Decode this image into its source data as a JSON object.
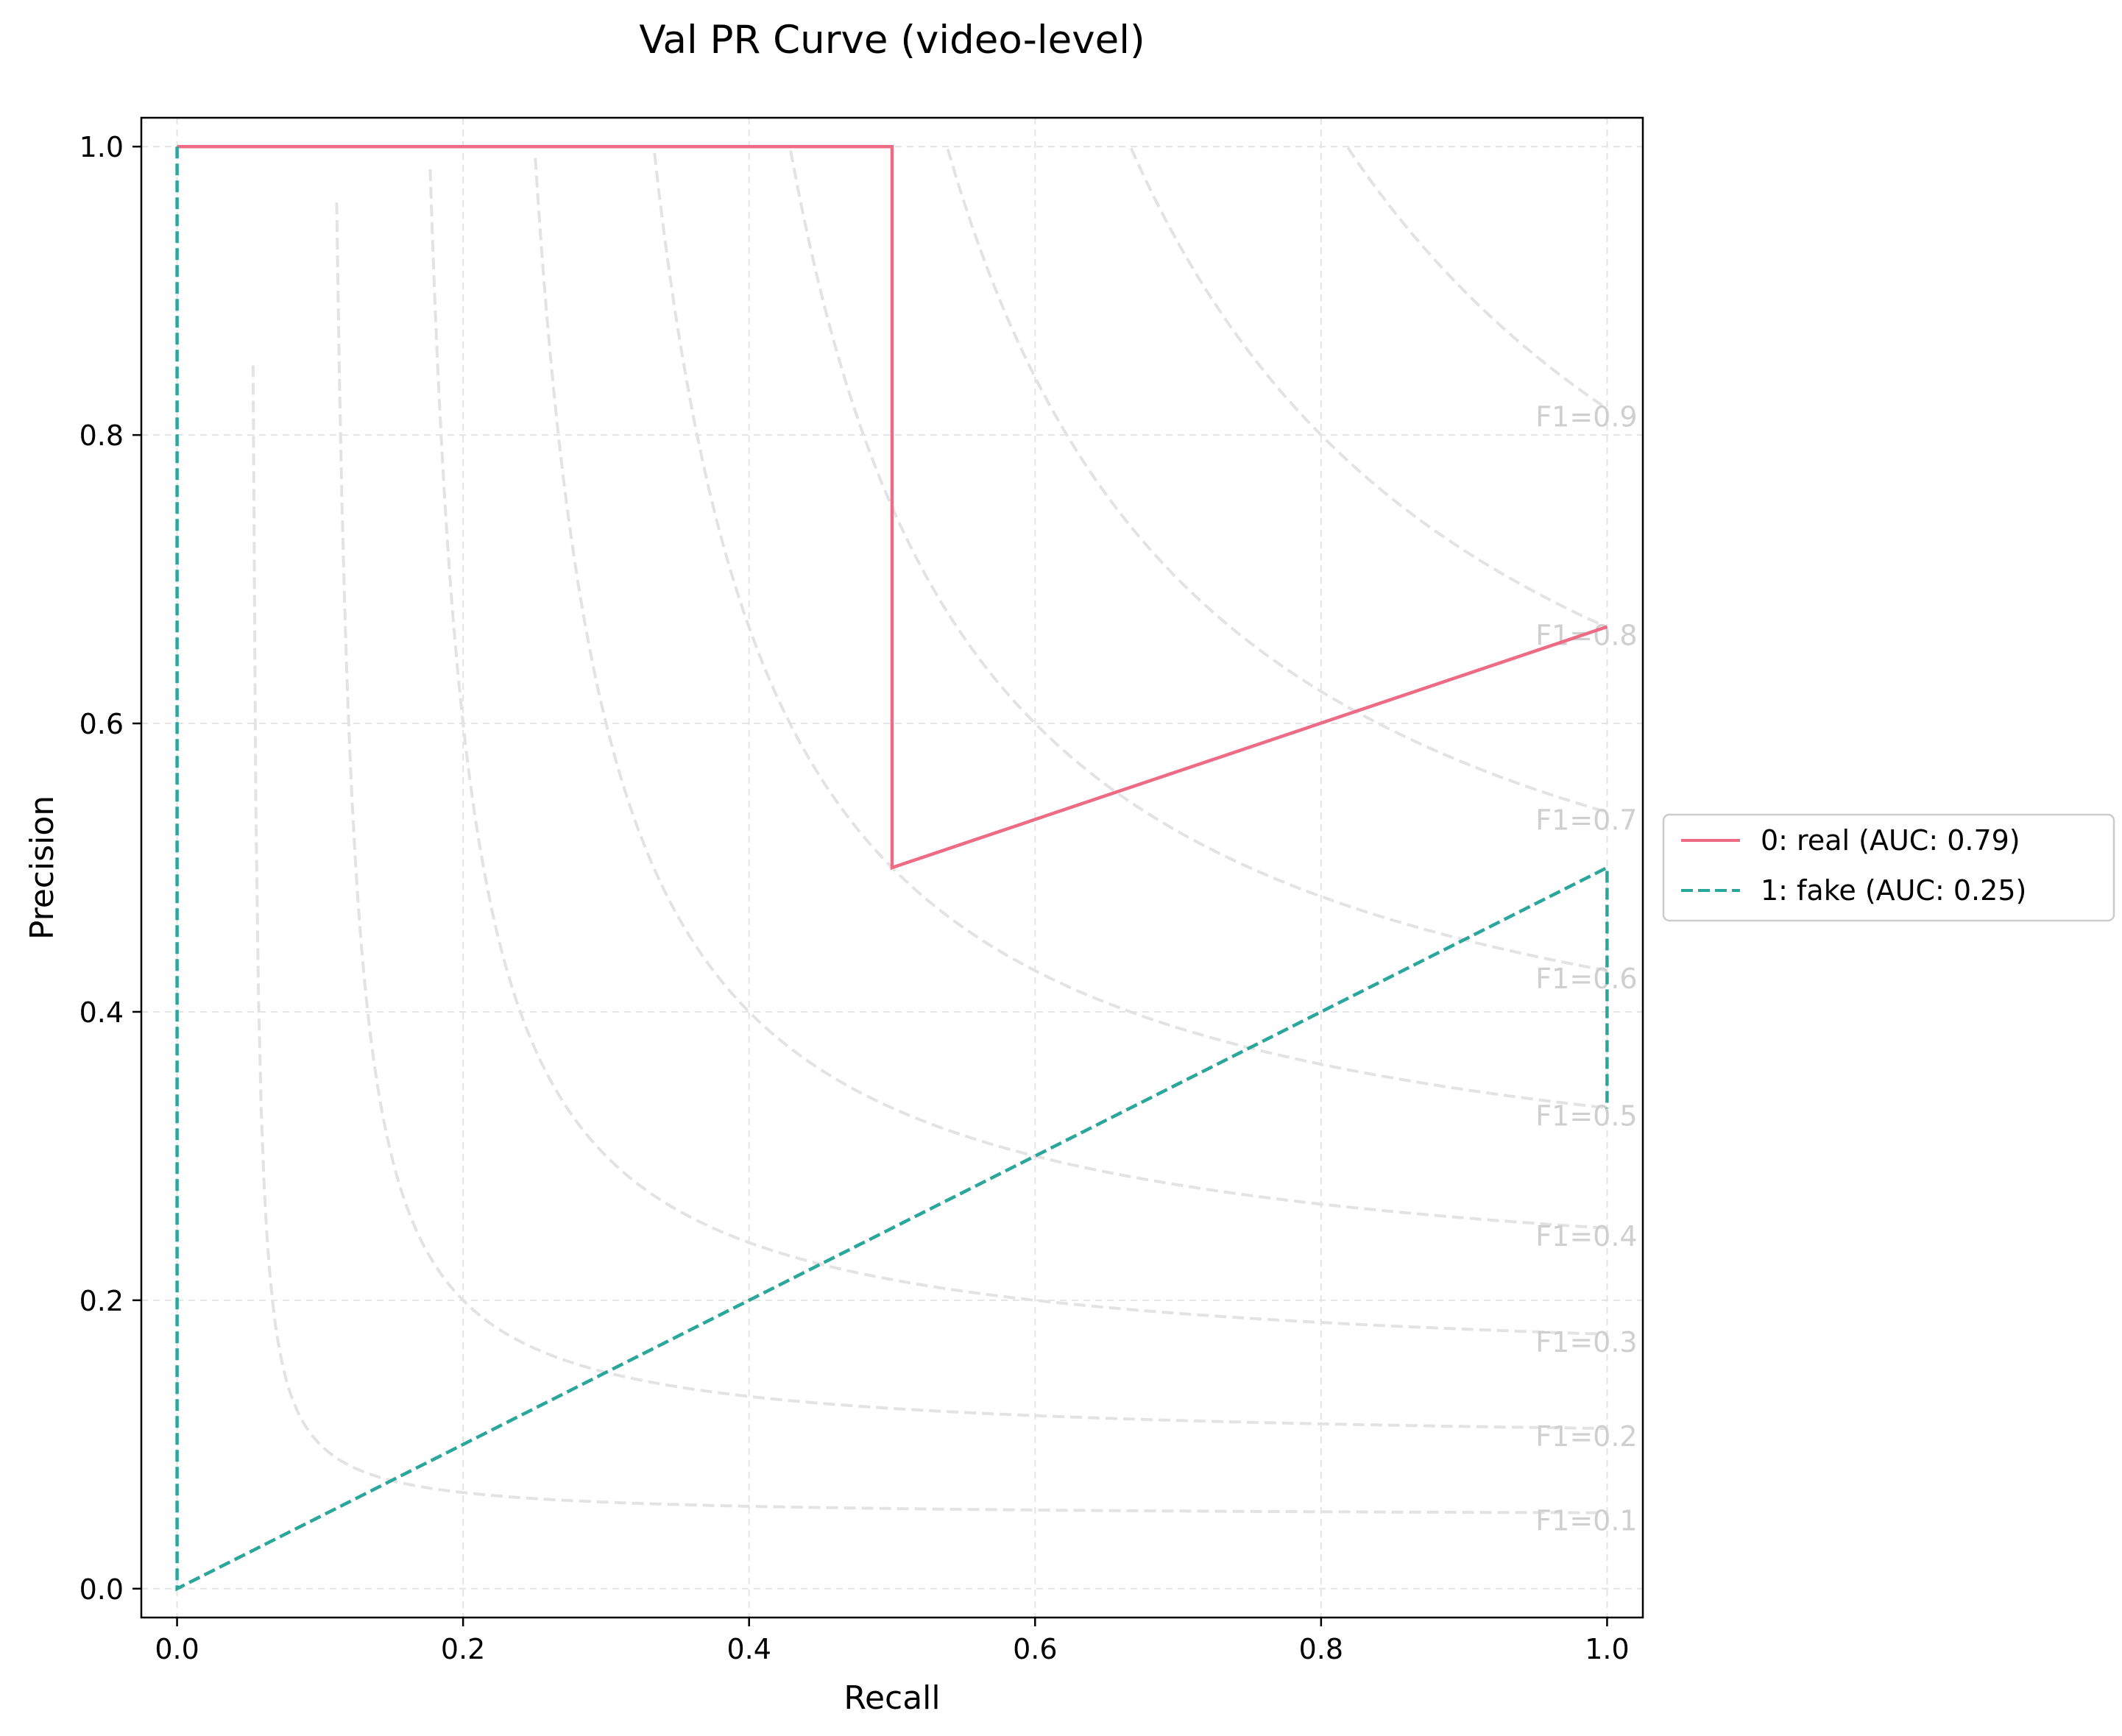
{
  "chart_data": {
    "type": "line",
    "title": "Val PR Curve (video-level)",
    "xlabel": "Recall",
    "ylabel": "Precision",
    "xlim": [
      -0.025,
      1.025
    ],
    "ylim": [
      -0.02,
      1.02
    ],
    "xticks": [
      0.0,
      0.2,
      0.4,
      0.6,
      0.8,
      1.0
    ],
    "yticks": [
      0.0,
      0.2,
      0.4,
      0.6,
      0.8,
      1.0
    ],
    "xtick_labels": [
      "0.0",
      "0.2",
      "0.4",
      "0.6",
      "0.8",
      "1.0"
    ],
    "ytick_labels": [
      "0.0",
      "0.2",
      "0.4",
      "0.6",
      "0.8",
      "1.0"
    ],
    "grid": true,
    "legend_position": "outside-right",
    "series": [
      {
        "name": "0: real (AUC: 0.79)",
        "color": "#ee6b86",
        "style": "solid",
        "x": [
          0.0,
          0.5,
          0.5,
          1.0
        ],
        "y": [
          1.0,
          1.0,
          0.5,
          0.667
        ]
      },
      {
        "name": "1: fake (AUC: 0.25)",
        "color": "#2aa69b",
        "style": "dashed",
        "x": [
          0.0,
          0.0,
          0.0,
          1.0,
          1.0
        ],
        "y": [
          1.0,
          0.0,
          0.0,
          0.5,
          0.333
        ]
      }
    ],
    "iso_f1": {
      "color": "#e3e3e3",
      "values": [
        0.1,
        0.2,
        0.3,
        0.4,
        0.5,
        0.6,
        0.7,
        0.8,
        0.9
      ],
      "labels": [
        "F1=0.1",
        "F1=0.2",
        "F1=0.3",
        "F1=0.4",
        "F1=0.5",
        "F1=0.6",
        "F1=0.7",
        "F1=0.8",
        "F1=0.9"
      ]
    }
  }
}
